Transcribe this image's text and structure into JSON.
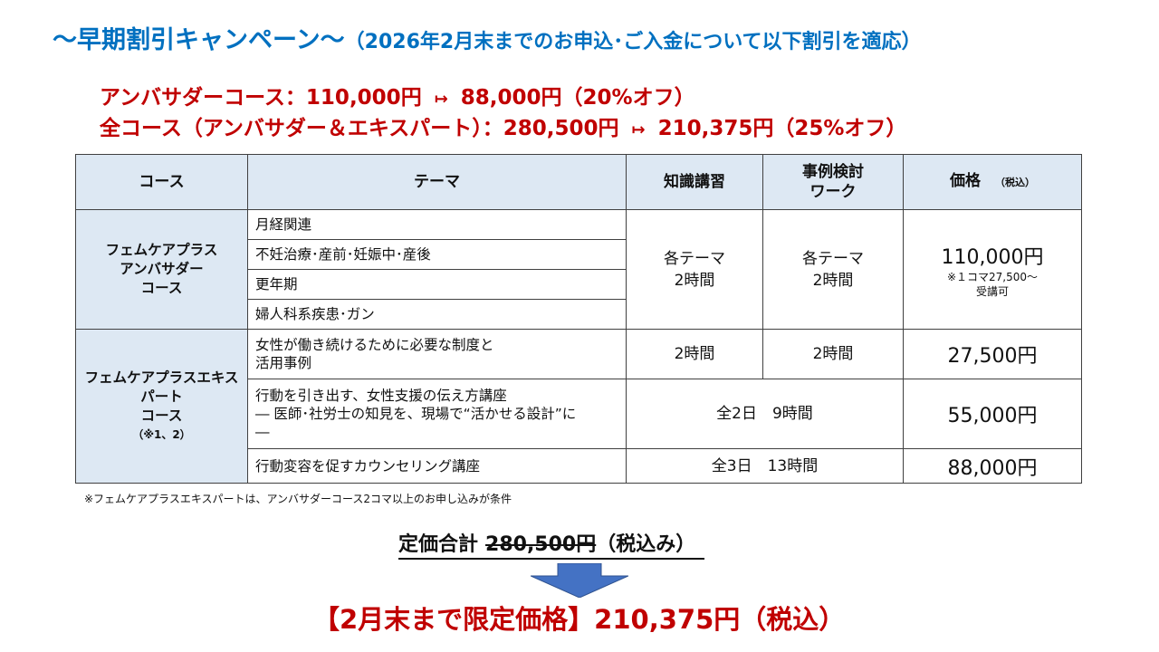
{
  "heading": {
    "main": "〜早期割引キャンペーン〜",
    "sub": "（2026年2月末までのお申込･ご入金について以下割引を適応）"
  },
  "offers": [
    {
      "text_before": "アンバサダーコース：110,000円",
      "arrow": "↦",
      "text_after": "88,000円（20%オフ）"
    },
    {
      "text_before": "全コース（アンバサダー＆エキスパート）：280,500円",
      "arrow": "↦",
      "text_after": "210,375円（25%オフ）"
    }
  ],
  "table": {
    "headers": {
      "course": "コース",
      "theme": "テーマ",
      "knowledge": "知識講習",
      "casework_line1": "事例検討",
      "casework_line2": "ワーク",
      "price": "価格",
      "price_note": "（税込）"
    },
    "ambassador": {
      "course_line1": "フェムケアプラス",
      "course_line2": "アンバサダー",
      "course_line3": "コース",
      "themes": [
        "月経関連",
        "不妊治療･産前･妊娠中･産後",
        "更年期",
        "婦人科系疾患･ガン"
      ],
      "knowledge_line1": "各テーマ",
      "knowledge_line2": "2時間",
      "casework_line1": "各テーマ",
      "casework_line2": "2時間",
      "price": "110,000円",
      "price_note_line1": "※１コマ27,500〜",
      "price_note_line2": "受講可"
    },
    "expert": {
      "course_line1": "フェムケアプラスエキス",
      "course_line2": "パート",
      "course_line3": "コース",
      "course_note": "（※1、2）",
      "rows": [
        {
          "theme_line1": "女性が働き続けるために必要な制度と",
          "theme_line2": "活用事例",
          "knowledge": "2時間",
          "casework": "2時間",
          "price": "27,500円"
        },
        {
          "theme_line1": "行動を引き出す、女性支援の伝え方講座",
          "theme_line2": "― 医師･社労士の知見を、現場で“活かせる設計”に",
          "theme_line3": "―",
          "duration": "全2日　9時間",
          "price": "55,000円"
        },
        {
          "theme_line1": "行動変容を促すカウンセリング講座",
          "duration": "全3日　13時間",
          "price": "88,000円"
        }
      ]
    }
  },
  "footnote": "※フェムケアプラスエキスパートは、アンバサダーコース2コマ以上のお申し込みが条件",
  "total": {
    "label": "定価合計",
    "amount": "280,500円",
    "tax": "（税込み）"
  },
  "final_price": "【2月末まで限定価格】210,375円（税込）",
  "colors": {
    "heading": "#0070C0",
    "offer": "#C00000",
    "header_fill": "#DDE8F3",
    "arrow": "#4472C4"
  }
}
